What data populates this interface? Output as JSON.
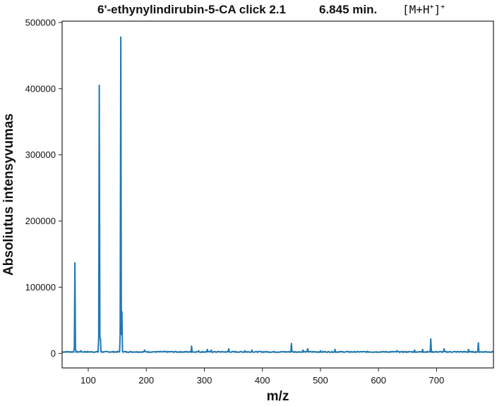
{
  "title": {
    "compound": "6'-ethynylindirubin-5-CA click 2.1",
    "time": "6.845 min.",
    "ion_base": "[M+H",
    "ion_charge_inner": "+",
    "ion_close": "]",
    "ion_charge_outer": "+"
  },
  "chart_data": {
    "type": "line",
    "title": "6'-ethynylindirubin-5-CA click 2.1    6.845 min.    [M+H+]+",
    "xlabel": "m/z",
    "ylabel": "Absoliutus intensyvumas",
    "xlim": [
      55,
      798
    ],
    "ylim": [
      -22000,
      502000
    ],
    "xticks": [
      100,
      200,
      300,
      400,
      500,
      600,
      700
    ],
    "yticks": [
      0,
      100000,
      200000,
      300000,
      400000,
      500000
    ],
    "grid": false,
    "line_color": "#1f77b4",
    "baseline": 1500,
    "peaks": [
      {
        "x": 77,
        "y": 137000
      },
      {
        "x": 87,
        "y": 4000
      },
      {
        "x": 94,
        "y": 3000
      },
      {
        "x": 119,
        "y": 405000
      },
      {
        "x": 121,
        "y": 22000
      },
      {
        "x": 156,
        "y": 478000
      },
      {
        "x": 158,
        "y": 63000
      },
      {
        "x": 197,
        "y": 5000
      },
      {
        "x": 230,
        "y": 3000
      },
      {
        "x": 250,
        "y": 3000
      },
      {
        "x": 278,
        "y": 11000
      },
      {
        "x": 290,
        "y": 4000
      },
      {
        "x": 305,
        "y": 6000
      },
      {
        "x": 312,
        "y": 5000
      },
      {
        "x": 342,
        "y": 7000
      },
      {
        "x": 370,
        "y": 4000
      },
      {
        "x": 382,
        "y": 5000
      },
      {
        "x": 420,
        "y": 3000
      },
      {
        "x": 450,
        "y": 15000
      },
      {
        "x": 470,
        "y": 5000
      },
      {
        "x": 478,
        "y": 7000
      },
      {
        "x": 500,
        "y": 4000
      },
      {
        "x": 525,
        "y": 6000
      },
      {
        "x": 548,
        "y": 3000
      },
      {
        "x": 580,
        "y": 3000
      },
      {
        "x": 632,
        "y": 4000
      },
      {
        "x": 662,
        "y": 5000
      },
      {
        "x": 676,
        "y": 6000
      },
      {
        "x": 690,
        "y": 22000
      },
      {
        "x": 713,
        "y": 7000
      },
      {
        "x": 742,
        "y": 3000
      },
      {
        "x": 755,
        "y": 6000
      },
      {
        "x": 772,
        "y": 16000
      },
      {
        "x": 785,
        "y": 3000
      }
    ]
  }
}
